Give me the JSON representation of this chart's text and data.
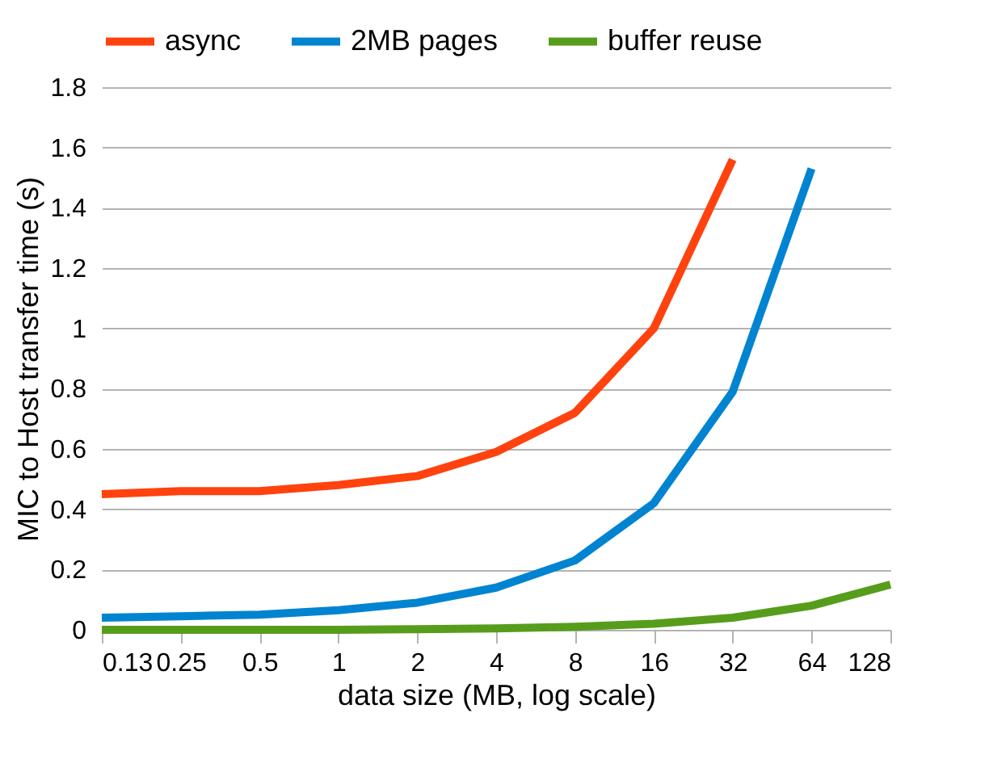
{
  "chart_data": {
    "type": "line",
    "xlabel": "data size (MB, log scale)",
    "ylabel": "MIC to Host transfer time (s)",
    "categories": [
      "0.13",
      "0.25",
      "0.5",
      "1",
      "2",
      "4",
      "8",
      "16",
      "32",
      "64",
      "128"
    ],
    "series": [
      {
        "name": "async",
        "color": "#ff420e",
        "values": [
          0.45,
          0.46,
          0.46,
          0.48,
          0.51,
          0.59,
          0.72,
          1.0,
          1.56,
          null,
          null
        ]
      },
      {
        "name": "2MB pages",
        "color": "#0084d1",
        "values": [
          0.04,
          0.045,
          0.05,
          0.065,
          0.09,
          0.14,
          0.23,
          0.42,
          0.79,
          1.53,
          null
        ]
      },
      {
        "name": "buffer reuse",
        "color": "#579d1c",
        "values": [
          0,
          0,
          0,
          0,
          0.002,
          0.005,
          0.01,
          0.02,
          0.04,
          0.08,
          0.15
        ]
      }
    ],
    "ylim": [
      0,
      1.8
    ],
    "yticks": [
      0,
      0.2,
      0.4,
      0.6,
      0.8,
      1,
      1.2,
      1.4,
      1.6,
      1.8
    ],
    "grid": "y",
    "legend": "top",
    "marker": "none",
    "line_style": "solid"
  }
}
